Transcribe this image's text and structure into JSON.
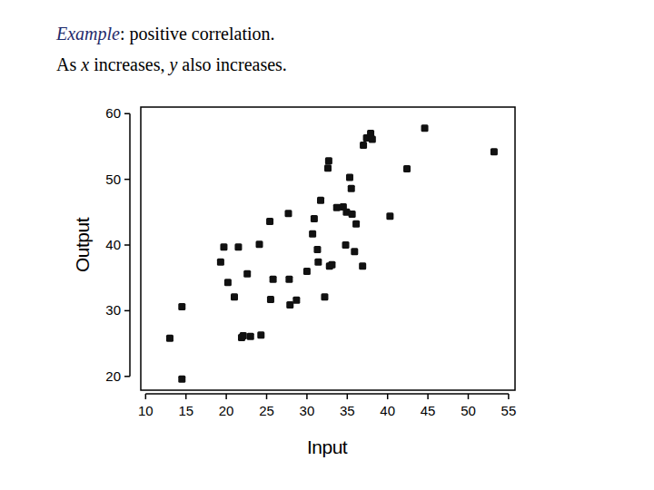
{
  "chart_data": {
    "type": "scatter",
    "title": "Example: positive correlation.",
    "subtitle": "As x increases, y also increases.",
    "x_label": "Input",
    "y_label": "Output",
    "marker": "square",
    "color": "#111111",
    "x": [
      13.0,
      14.5,
      14.5,
      19.3,
      19.7,
      20.2,
      21.0,
      21.5,
      21.9,
      22.1,
      22.6,
      23.0,
      24.1,
      24.3,
      25.4,
      25.5,
      25.8,
      27.7,
      27.8,
      27.9,
      28.7,
      30.0,
      30.7,
      30.9,
      31.3,
      31.4,
      31.7,
      32.2,
      32.6,
      32.7,
      32.8,
      33.1,
      33.7,
      34.5,
      34.9,
      34.8,
      35.3,
      35.5,
      35.6,
      36.1,
      35.9,
      36.9,
      37.0,
      37.4,
      37.9,
      38.1,
      40.3,
      42.4,
      44.6,
      53.2
    ],
    "values": [
      25.8,
      30.6,
      19.6,
      37.4,
      39.7,
      34.3,
      32.1,
      39.7,
      25.9,
      26.2,
      35.6,
      26.1,
      40.1,
      26.3,
      43.6,
      31.7,
      34.8,
      44.8,
      34.8,
      30.9,
      31.6,
      36.0,
      41.7,
      44.0,
      39.3,
      37.4,
      46.8,
      32.1,
      51.7,
      52.8,
      36.8,
      37.0,
      45.7,
      45.8,
      45.0,
      40.0,
      50.3,
      48.6,
      44.7,
      43.2,
      39.0,
      36.8,
      55.2,
      56.3,
      57.0,
      56.1,
      44.4,
      51.6,
      57.8,
      54.2
    ],
    "xlim": [
      9.4,
      55.8
    ],
    "ylim": [
      17.9,
      61
    ],
    "xticks": [
      10,
      15,
      20,
      25,
      30,
      35,
      40,
      45,
      50,
      55
    ],
    "yticks": [
      20,
      30,
      40,
      50,
      60
    ]
  }
}
